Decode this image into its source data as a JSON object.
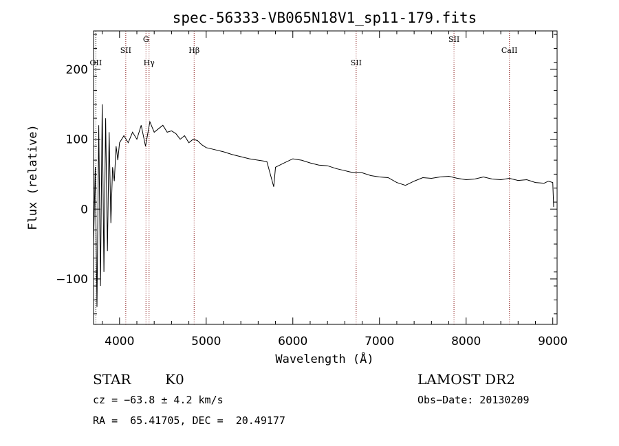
{
  "chart_data": {
    "type": "line",
    "title": "spec-56333-VB065N18V1_sp11-179.fits",
    "xlabel": "Wavelength (Å)",
    "ylabel": "Flux (relative)",
    "xlim": [
      3700,
      9050
    ],
    "ylim": [
      -165,
      255
    ],
    "xticks": [
      4000,
      5000,
      6000,
      7000,
      8000,
      9000
    ],
    "yticks": [
      -100,
      0,
      100,
      200
    ],
    "xtick_labels": [
      "4000",
      "5000",
      "6000",
      "7000",
      "8000",
      "9000"
    ],
    "ytick_labels": [
      "−100",
      "0",
      "100",
      "200"
    ],
    "series": [
      {
        "name": "flux",
        "x": [
          3700,
          3720,
          3740,
          3760,
          3780,
          3800,
          3820,
          3840,
          3860,
          3880,
          3900,
          3920,
          3940,
          3960,
          3980,
          4000,
          4050,
          4100,
          4150,
          4200,
          4250,
          4300,
          4350,
          4400,
          4450,
          4500,
          4550,
          4600,
          4650,
          4700,
          4750,
          4800,
          4850,
          4900,
          4950,
          5000,
          5100,
          5200,
          5300,
          5400,
          5500,
          5600,
          5700,
          5780,
          5800,
          5900,
          6000,
          6100,
          6200,
          6300,
          6400,
          6500,
          6600,
          6700,
          6800,
          6900,
          7000,
          7100,
          7200,
          7300,
          7400,
          7500,
          7600,
          7700,
          7800,
          7900,
          8000,
          8100,
          8200,
          8300,
          8400,
          8500,
          8600,
          8700,
          8800,
          8900,
          8950,
          9000,
          9010
        ],
        "values": [
          -50,
          60,
          -140,
          120,
          -110,
          150,
          -90,
          130,
          -60,
          110,
          -20,
          60,
          40,
          90,
          70,
          95,
          105,
          95,
          110,
          100,
          120,
          90,
          125,
          110,
          115,
          120,
          110,
          112,
          108,
          100,
          105,
          95,
          100,
          98,
          92,
          88,
          85,
          82,
          78,
          75,
          72,
          70,
          68,
          32,
          60,
          66,
          72,
          70,
          66,
          63,
          62,
          58,
          55,
          52,
          52,
          48,
          46,
          45,
          38,
          34,
          40,
          45,
          44,
          46,
          47,
          44,
          42,
          43,
          46,
          43,
          42,
          44,
          41,
          42,
          38,
          37,
          40,
          38,
          3
        ]
      }
    ],
    "spectral_lines": [
      {
        "label": "OII",
        "wavelength": 3727,
        "label_row": "mid",
        "color": "#000000"
      },
      {
        "label": "SII",
        "wavelength": 4072,
        "label_row": "top",
        "color": "#8b1a1a"
      },
      {
        "label": "G",
        "wavelength": 4305,
        "label_row": "high",
        "color": "#8b1a1a"
      },
      {
        "label": "Hγ",
        "wavelength": 4341,
        "label_row": "mid",
        "color": "#8b1a1a"
      },
      {
        "label": "Hβ",
        "wavelength": 4861,
        "label_row": "top",
        "color": "#8b1a1a"
      },
      {
        "label": "SII",
        "wavelength": 6731,
        "label_row": "mid",
        "color": "#8b1a1a"
      },
      {
        "label": "SII",
        "wavelength": 7860,
        "label_row": "high",
        "color": "#8b1a1a"
      },
      {
        "label": "CaII",
        "wavelength": 8500,
        "label_row": "top",
        "color": "#8b1a1a"
      }
    ]
  },
  "info": {
    "class": "STAR",
    "subclass": "K0",
    "survey": "LAMOST DR2",
    "cz": "cz = −63.8 ± 4.2 km/s",
    "obs_date": "Obs−Date: 20130209",
    "radec": "RA =  65.41705, DEC =  20.49177"
  }
}
